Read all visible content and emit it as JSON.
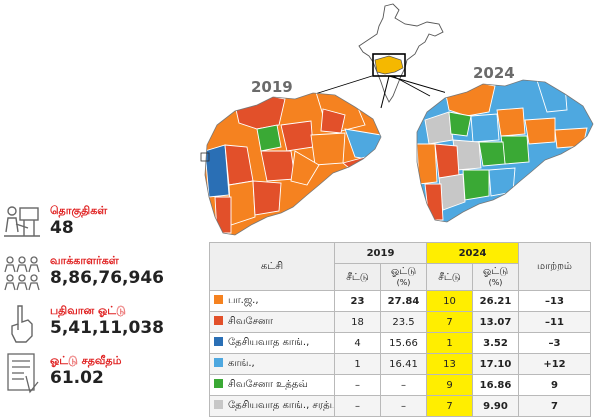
{
  "years": {
    "left": "2019",
    "right": "2024"
  },
  "stats": [
    {
      "label": "தொகுதிகள்",
      "value": "48",
      "icon": "constituency-icon"
    },
    {
      "label": "வாக்காளர்கள்",
      "value": "8,86,76,946",
      "icon": "voters-icon"
    },
    {
      "label": "பதிவான ஓட்டு",
      "value": "5,41,11,038",
      "icon": "vote-cast-icon"
    },
    {
      "label": "ஓட்டு சதவீதம்",
      "value": "61.02",
      "icon": "ballot-percent-icon"
    }
  ],
  "table": {
    "party_header": "கட்சி",
    "y2019": "2019",
    "y2024": "2024",
    "change_header": "மாற்றம்",
    "seats_label": "சீட்டு",
    "votes_label": "ஓட்டு",
    "pct_label": "(%)",
    "rows": [
      {
        "party": "பா.ஜ.,",
        "color": "#f58220",
        "s19": "23",
        "v19": "27.84",
        "s24": "10",
        "v24": "26.21",
        "change": "–13"
      },
      {
        "party": "சிவசேனா",
        "color": "#e2502a",
        "s19": "18",
        "v19": "23.5",
        "s24": "7",
        "v24": "13.07",
        "change": "–11"
      },
      {
        "party": "தேசியவாத காங்.,",
        "color": "#2a6fb5",
        "s19": "4",
        "v19": "15.66",
        "s24": "1",
        "v24": "3.52",
        "change": "–3"
      },
      {
        "party": "காங்.,",
        "color": "#4ea8e0",
        "s19": "1",
        "v19": "16.41",
        "s24": "13",
        "v24": "17.10",
        "change": "+12"
      },
      {
        "party": "சிவசேனா உத்தவ்",
        "color": "#3aa935",
        "s19": "–",
        "v19": "–",
        "s24": "9",
        "v24": "16.86",
        "change": "9"
      },
      {
        "party": "தேசியவாத காங்., சரத்பவார்",
        "color": "#c7c7c7",
        "s19": "–",
        "v19": "–",
        "s24": "7",
        "v24": "9.90",
        "change": "7"
      }
    ]
  },
  "colors": {
    "bjp": "#f58220",
    "shivsena": "#e2502a",
    "ncp": "#2a6fb5",
    "congress": "#4ea8e0",
    "ss_ubt": "#3aa935",
    "ncp_sp": "#c7c7c7",
    "highlight": "#ffee00",
    "label_red": "#e02323"
  }
}
